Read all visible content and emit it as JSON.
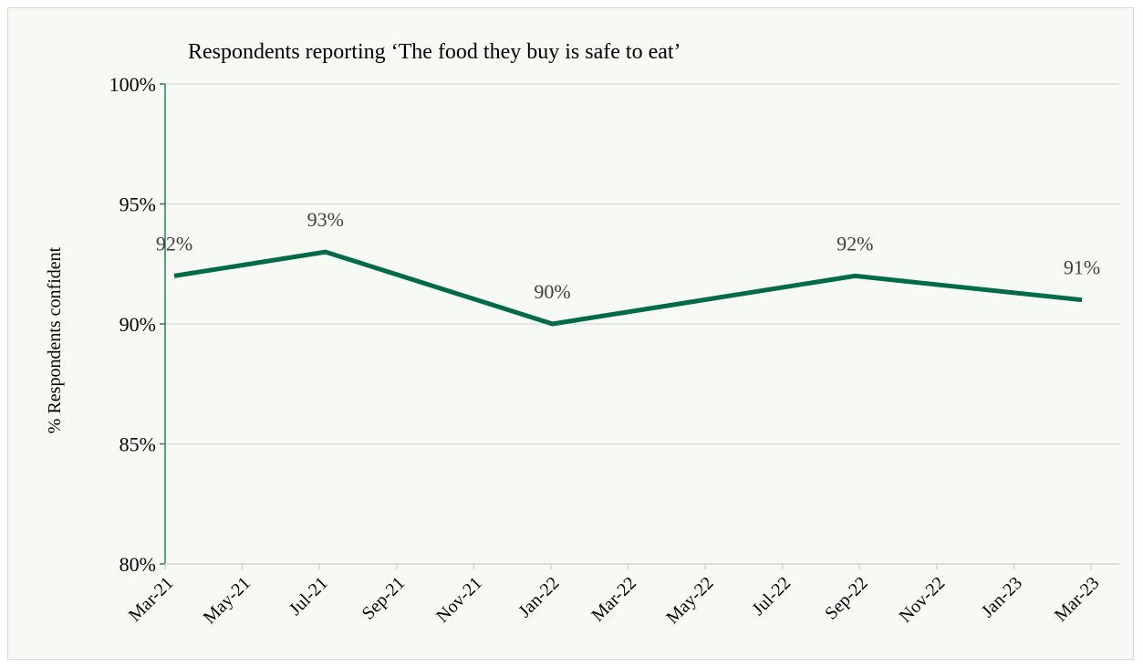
{
  "chart_data": {
    "type": "line",
    "title": "Respondents reporting ‘The food they buy is safe to eat’",
    "xlabel": "",
    "ylabel": "% Respondents confident",
    "x_ticks": [
      "Mar-21",
      "May-21",
      "Jul-21",
      "Sep-21",
      "Nov-21",
      "Jan-22",
      "Mar-22",
      "May-22",
      "Jul-22",
      "Sep-22",
      "Nov-22",
      "Jan-23",
      "Mar-23"
    ],
    "y_ticks": [
      "80%",
      "85%",
      "90%",
      "95%",
      "100%"
    ],
    "ylim": [
      80,
      100
    ],
    "xlim": [
      "2021-03",
      "2023-03"
    ],
    "grid": true,
    "legend": "none",
    "series": [
      {
        "color": "#006b48",
        "points": [
          {
            "x": "2021-03",
            "y": 92,
            "label": "92%"
          },
          {
            "x": "2021-07",
            "y": 93,
            "label": "93%"
          },
          {
            "x": "2022-01",
            "y": 90,
            "label": "90%"
          },
          {
            "x": "2022-09",
            "y": 92,
            "label": "92%"
          },
          {
            "x": "2023-03",
            "y": 91,
            "label": "91%"
          }
        ]
      }
    ],
    "colors": {
      "line": "#006b48",
      "axis": "#2e7d5b",
      "grid": "#d0d6d0",
      "text": "#000000",
      "label": "#404040"
    }
  }
}
